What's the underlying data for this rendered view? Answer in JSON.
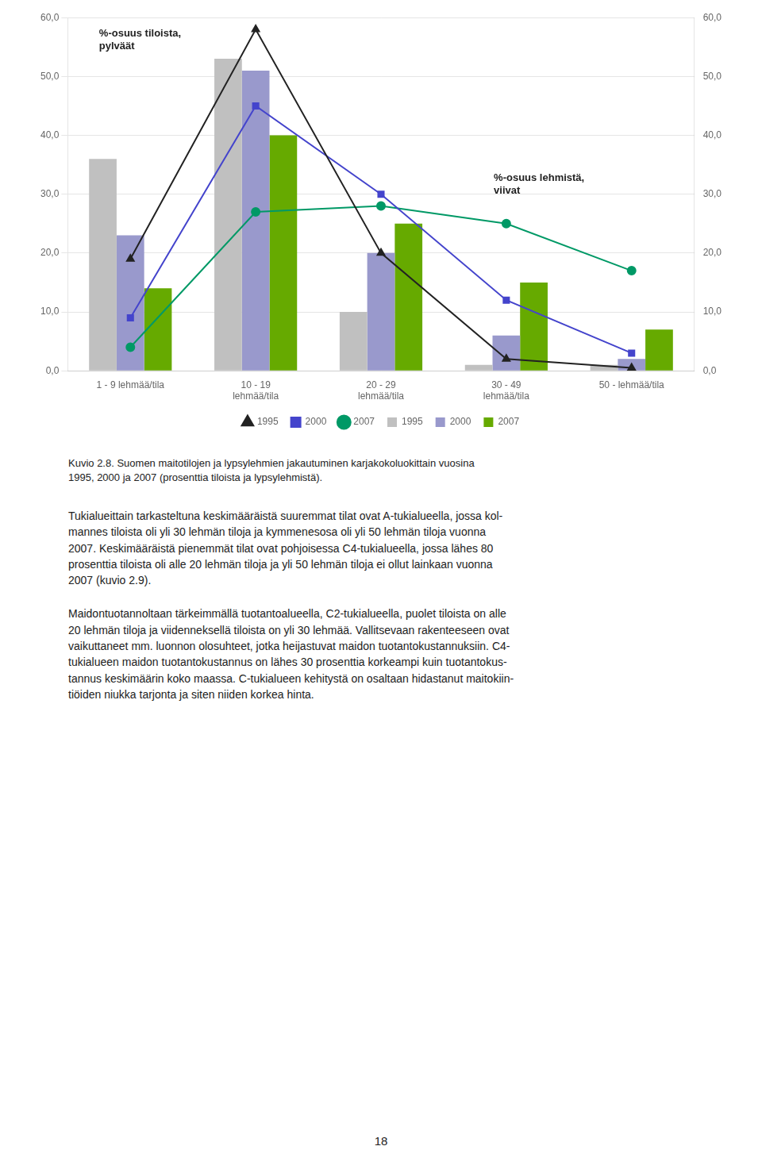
{
  "chart_data": {
    "type": "bar",
    "categories": [
      "1 - 9 lehmää/tila",
      "10 - 19\nlehmää/tila",
      "20 - 29\nlehmää/tila",
      "30 - 49\nlehmää/tila",
      "50 - lehmää/tila"
    ],
    "series": [
      {
        "name": "1995",
        "type": "bar",
        "color": "#c0c0c0",
        "values": [
          36.0,
          53.0,
          10.0,
          1.0,
          1.0
        ]
      },
      {
        "name": "2000",
        "type": "bar",
        "color": "#9999cc",
        "values": [
          23.0,
          51.0,
          20.0,
          6.0,
          2.0
        ]
      },
      {
        "name": "2007",
        "type": "bar",
        "color": "#66aa00",
        "values": [
          14.0,
          40.0,
          25.0,
          15.0,
          7.0
        ]
      },
      {
        "name": "1995",
        "type": "line",
        "axis": "y2",
        "marker": "triangle",
        "color": "#222222",
        "values": [
          19.0,
          58.0,
          20.0,
          2.0,
          0.5
        ]
      },
      {
        "name": "2000",
        "type": "line",
        "axis": "y2",
        "marker": "square",
        "color": "#4444cc",
        "values": [
          9.0,
          45.0,
          30.0,
          12.0,
          3.0
        ]
      },
      {
        "name": "2007",
        "type": "line",
        "axis": "y2",
        "marker": "circle",
        "color": "#009966",
        "values": [
          4.0,
          27.0,
          28.0,
          25.0,
          17.0
        ]
      }
    ],
    "ylim": [
      0.0,
      60.0
    ],
    "yticks": [
      {
        "value": 0,
        "label": "0,0"
      },
      {
        "value": 10,
        "label": "10,0"
      },
      {
        "value": 20,
        "label": "20,0"
      },
      {
        "value": 30,
        "label": "30,0"
      },
      {
        "value": 40,
        "label": "40,0"
      },
      {
        "value": 50,
        "label": "50,0"
      },
      {
        "value": 60,
        "label": "60,0"
      }
    ],
    "y2lim": [
      0.0,
      60.0
    ],
    "y2ticks": [
      {
        "value": 0,
        "label": "0,0"
      },
      {
        "value": 10,
        "label": "10,0"
      },
      {
        "value": 20,
        "label": "20,0"
      },
      {
        "value": 30,
        "label": "30,0"
      },
      {
        "value": 40,
        "label": "40,0"
      },
      {
        "value": 50,
        "label": "50,0"
      },
      {
        "value": 60,
        "label": "60,0"
      }
    ],
    "annotations": [
      "%-osuus tiloista,\npylväät",
      "%-osuus lehmistä,\nviivat"
    ],
    "grid": true,
    "legend": "bottom"
  },
  "caption": "Kuvio 2.8. Suomen maitotilojen ja lypsylehmien jakautuminen karjakokoluokittain vuosina\n1995, 2000 ja 2007 (prosenttia tiloista ja lypsylehmistä).",
  "body": [
    "Tukialueittain tarkasteltuna keskimääräistä suuremmat tilat ovat A-tukialueella, jossa kol-\nmannes tiloista oli yli 30 lehmän tiloja ja kymmenesosa oli yli 50 lehmän tiloja vuonna\n2007. Keskimääräistä pienemmät tilat ovat pohjoisessa C4-tukialueella, jossa lähes 80\nprosenttia tiloista oli alle 20 lehmän tiloja ja yli 50 lehmän tiloja ei ollut lainkaan vuonna\n2007 (kuvio 2.9).",
    "Maidontuotannoltaan tärkeimmällä tuotantoalueella, C2-tukialueella, puolet tiloista on alle\n20 lehmän tiloja ja viidenneksellä tiloista on yli 30 lehmää. Vallitsevaan rakenteeseen ovat\nvaikuttaneet mm. luonnon olosuhteet, jotka heijastuvat maidon tuotantokustannuksiin. C4-\ntukialueen maidon tuotantokustannus on lähes 30 prosenttia korkeampi kuin tuotantokus-\ntannus keskimäärin koko maassa. C-tukialueen kehitystä on osaltaan hidastanut maitokiin-\ntiöiden niukka tarjonta ja siten niiden korkea hinta."
  ],
  "page_number": "18"
}
